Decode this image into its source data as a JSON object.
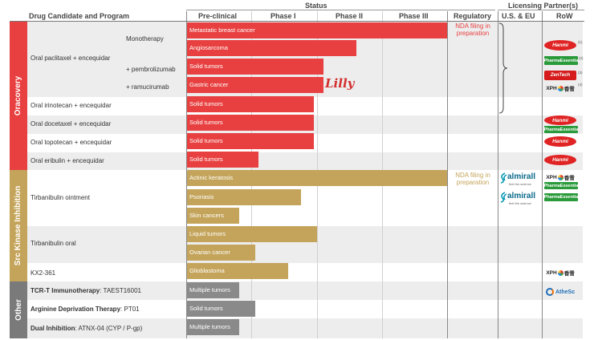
{
  "header": {
    "program": "Drug Candidate and Program",
    "status": "Status",
    "licensing": "Licensing Partner(s)",
    "preclinical": "Pre-clinical",
    "phase1": "Phase I",
    "phase2": "Phase II",
    "phase3": "Phase III",
    "regulatory": "Regulatory",
    "us_eu": "U.S. & EU",
    "row": "RoW"
  },
  "categories": {
    "oracovery": "Oracovery",
    "src": "Src Kinase Inhibition",
    "other": "Other"
  },
  "labels": {
    "paclitaxel": "Oral paclitaxel + encequidar",
    "monotherapy": "Monotherapy",
    "pembro": "+ pembrolizumab",
    "ramu": "+ ramucirumab",
    "irinotecan": "Oral irinotecan + encequidar",
    "docetaxel": "Oral docetaxel + encequidar",
    "topotecan": "Oral topotecan + encequidar",
    "eribulin": "Oral eribulin + encequidar",
    "tirbanibulin_oint": "Tirbanibulin ointment",
    "tirbanibulin_oral": "Tirbanibulin oral",
    "kx2": "KX2-361",
    "tcr_bold": "TCR-T Immunotherapy",
    "tcr_rest": ": TAEST16001",
    "arg_bold": "Arginine Deprivation Therapy",
    "arg_rest": ": PT01",
    "dual_bold": "Dual Inhibition",
    "dual_rest": ": ATNX-04 (CYP / P-gp)"
  },
  "regulatory_notes": {
    "r1": "NDA filing in preparation",
    "r2": "NDA filing in preparation"
  },
  "partners": {
    "lilly": "Lilly",
    "hanmi": "Hanmi",
    "pharmaessentia": "PharmaEssentia",
    "zenitech": "ZenTech",
    "xph": "XPH",
    "almirall": "almirall",
    "almirall_tag": "feel the science",
    "xph_cn": "香雪",
    "athenex": "AtheSc"
  },
  "chart_data": {
    "type": "bar",
    "orientation": "horizontal",
    "title": "Status",
    "stages": [
      "Pre-clinical",
      "Phase I",
      "Phase II",
      "Phase III",
      "Regulatory"
    ],
    "stage_unit": "development phase (0 = start of Pre-clinical, 4 = end of Phase III)",
    "bars": [
      {
        "program": "Oral paclitaxel + encequidar - Monotherapy",
        "indication": "Metastatic breast cancer",
        "category": "Oracovery",
        "progress": 4.0
      },
      {
        "program": "Oral paclitaxel + encequidar - Monotherapy",
        "indication": "Angiosarcoma",
        "category": "Oracovery",
        "progress": 2.6
      },
      {
        "program": "Oral paclitaxel + encequidar + pembrolizumab",
        "indication": "Solid tumors",
        "category": "Oracovery",
        "progress": 2.1
      },
      {
        "program": "Oral paclitaxel + encequidar + ramucirumab",
        "indication": "Gastric cancer",
        "category": "Oracovery",
        "progress": 2.1
      },
      {
        "program": "Oral irinotecan + encequidar",
        "indication": "Solid tumors",
        "category": "Oracovery",
        "progress": 1.95
      },
      {
        "program": "Oral docetaxel + encequidar",
        "indication": "Solid tumors",
        "category": "Oracovery",
        "progress": 1.95
      },
      {
        "program": "Oral topotecan + encequidar",
        "indication": "Solid tumors",
        "category": "Oracovery",
        "progress": 1.95
      },
      {
        "program": "Oral eribulin + encequidar",
        "indication": "Solid tumors",
        "category": "Oracovery",
        "progress": 1.1
      },
      {
        "program": "Tirbanibulin ointment",
        "indication": "Actinic keratosis",
        "category": "Src Kinase Inhibition",
        "progress": 4.0
      },
      {
        "program": "Tirbanibulin ointment",
        "indication": "Psoriasis",
        "category": "Src Kinase Inhibition",
        "progress": 1.75
      },
      {
        "program": "Tirbanibulin ointment",
        "indication": "Skin cancers",
        "category": "Src Kinase Inhibition",
        "progress": 0.8
      },
      {
        "program": "Tirbanibulin oral",
        "indication": "Liquid tumors",
        "category": "Src Kinase Inhibition",
        "progress": 2.0
      },
      {
        "program": "Tirbanibulin oral",
        "indication": "Ovarian cancer",
        "category": "Src Kinase Inhibition",
        "progress": 1.05
      },
      {
        "program": "KX2-361",
        "indication": "Glioblastoma",
        "category": "Src Kinase Inhibition",
        "progress": 1.55
      },
      {
        "program": "TCR-T Immunotherapy: TAEST16001",
        "indication": "Multiple tumors",
        "category": "Other",
        "progress": 0.8
      },
      {
        "program": "Arginine Deprivation Therapy: PT01",
        "indication": "Solid tumors",
        "category": "Other",
        "progress": 1.05
      },
      {
        "program": "Dual Inhibition: ATNX-04 (CYP / P-gp)",
        "indication": "Multiple tumors",
        "category": "Other",
        "progress": 0.8
      }
    ],
    "category_colors": {
      "Oracovery": "#e84040",
      "Src Kinase Inhibition": "#c4a45a",
      "Other": "#8a8a8a"
    },
    "label_colors": {
      "Oracovery": "#e84040",
      "Src Kinase Inhibition": "#c4a45a",
      "Other": "#7a7a7a"
    }
  }
}
